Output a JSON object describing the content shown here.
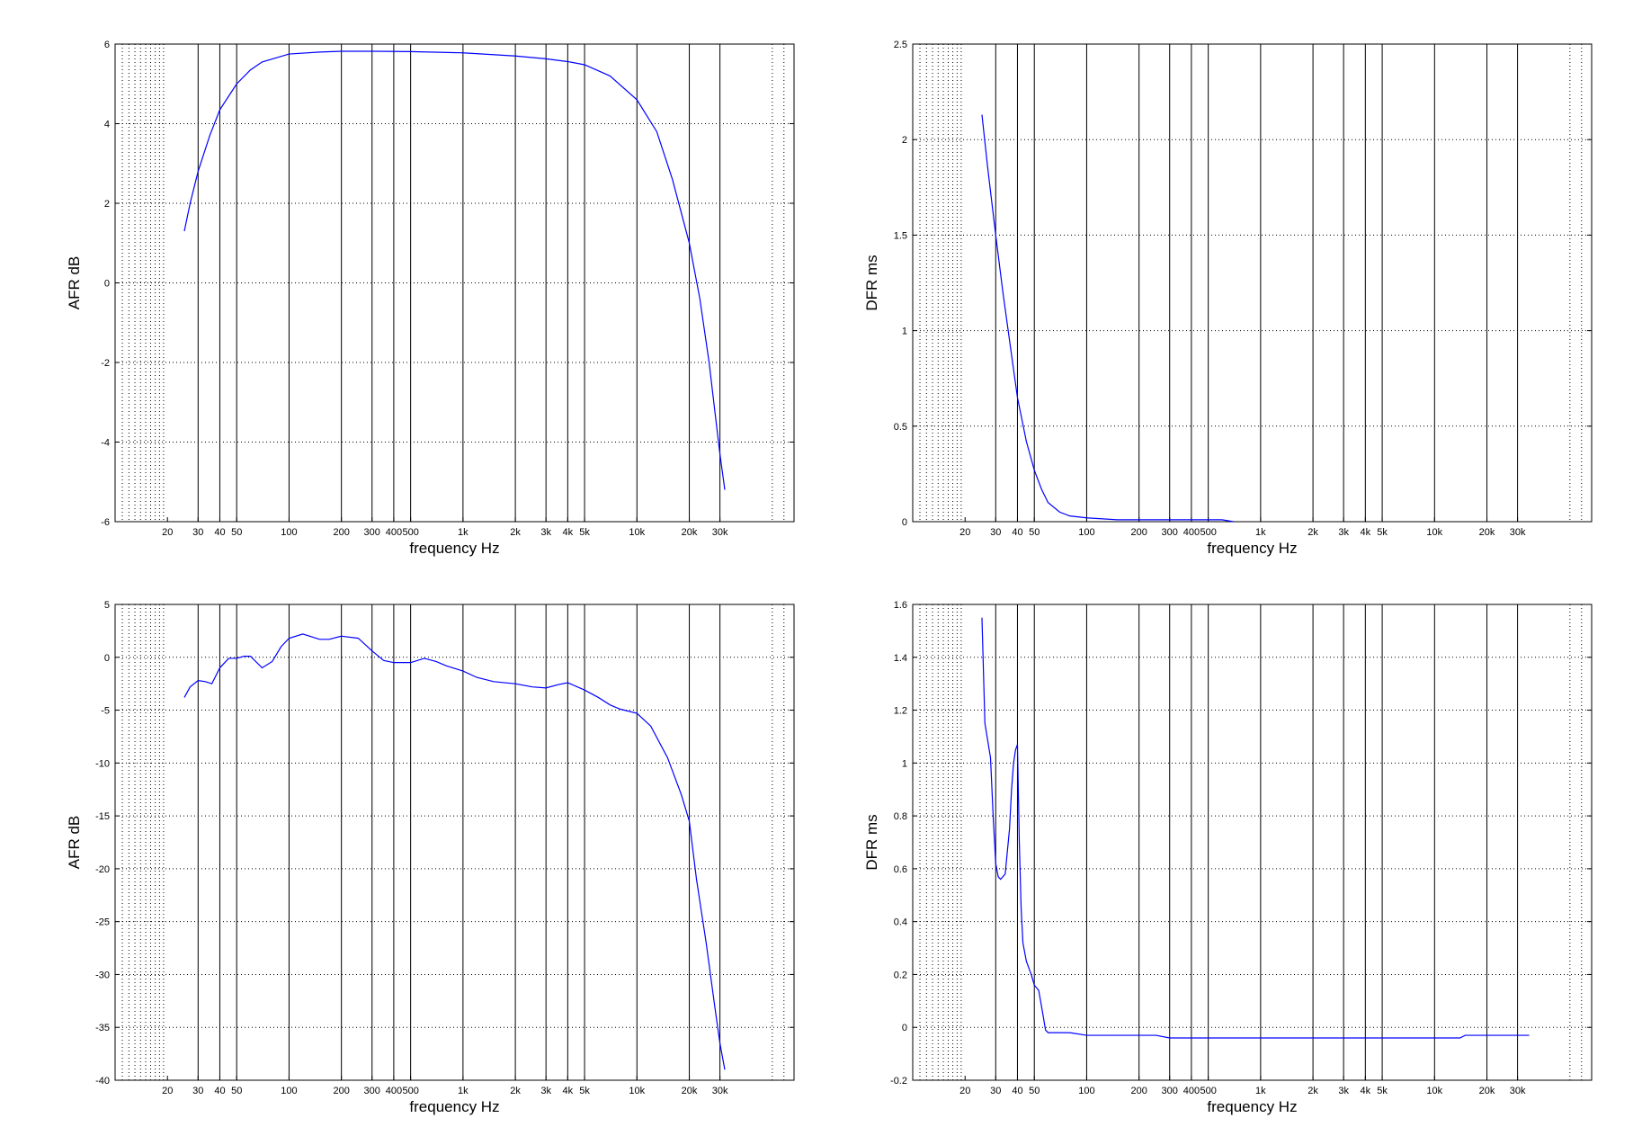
{
  "chart_data": [
    {
      "type": "line",
      "xscale": "log",
      "xlabel": "frequency   Hz",
      "ylabel": "AFR dB",
      "xlim": [
        10,
        80000
      ],
      "ylim": [
        -6,
        6
      ],
      "yticks": [
        "-6",
        "-4",
        "-2",
        "0",
        "2",
        "4",
        "6"
      ],
      "ytick_values": [
        -6,
        -4,
        -2,
        0,
        2,
        4,
        6
      ],
      "xticks": [
        "20",
        "30",
        "40",
        "50",
        "100",
        "200",
        "300",
        "400",
        "500",
        "1k",
        "2k",
        "3k",
        "4k",
        "5k",
        "10k",
        "20k",
        "30k"
      ],
      "xtick_values": [
        20,
        30,
        40,
        50,
        100,
        200,
        300,
        400,
        500,
        1000,
        2000,
        3000,
        4000,
        5000,
        10000,
        20000,
        30000
      ],
      "grid": true,
      "line_color": "#0000ff",
      "series": [
        {
          "x": [
            25,
            27,
            30,
            35,
            40,
            50,
            60,
            70,
            100,
            150,
            200,
            300,
            500,
            1000,
            2000,
            3000,
            4000,
            5000,
            7000,
            10000,
            13000,
            16000,
            20000,
            23000,
            26000,
            28000,
            30000,
            32000
          ],
          "y": [
            1.3,
            2.0,
            2.8,
            3.7,
            4.35,
            5.0,
            5.35,
            5.55,
            5.75,
            5.8,
            5.82,
            5.82,
            5.81,
            5.78,
            5.7,
            5.63,
            5.56,
            5.48,
            5.2,
            4.6,
            3.8,
            2.6,
            1.0,
            -0.4,
            -2.0,
            -3.2,
            -4.3,
            -5.2
          ]
        }
      ]
    },
    {
      "type": "line",
      "xscale": "log",
      "xlabel": "frequency   Hz",
      "ylabel": "DFR ms",
      "xlim": [
        10,
        80000
      ],
      "ylim": [
        0,
        2.5
      ],
      "yticks": [
        "0",
        "0.5",
        "1",
        "1.5",
        "2",
        "2.5"
      ],
      "ytick_values": [
        0,
        0.5,
        1,
        1.5,
        2,
        2.5
      ],
      "xticks": [
        "20",
        "30",
        "40",
        "50",
        "100",
        "200",
        "300",
        "400",
        "500",
        "1k",
        "2k",
        "3k",
        "4k",
        "5k",
        "10k",
        "20k",
        "30k"
      ],
      "xtick_values": [
        20,
        30,
        40,
        50,
        100,
        200,
        300,
        400,
        500,
        1000,
        2000,
        3000,
        4000,
        5000,
        10000,
        20000,
        30000
      ],
      "grid": true,
      "line_color": "#0000ff",
      "series": [
        {
          "x": [
            25,
            27,
            30,
            33,
            36,
            40,
            45,
            50,
            55,
            60,
            70,
            80,
            100,
            150,
            200,
            300,
            400,
            500,
            600,
            700
          ],
          "y": [
            2.13,
            1.85,
            1.5,
            1.2,
            0.95,
            0.65,
            0.42,
            0.27,
            0.17,
            0.1,
            0.05,
            0.03,
            0.02,
            0.01,
            0.01,
            0.01,
            0.01,
            0.01,
            0.01,
            0.0
          ]
        }
      ]
    },
    {
      "type": "line",
      "xscale": "log",
      "xlabel": "frequency   Hz",
      "ylabel": "AFR dB",
      "xlim": [
        10,
        80000
      ],
      "ylim": [
        -40,
        5
      ],
      "yticks": [
        "-40",
        "-35",
        "-30",
        "-25",
        "-20",
        "-15",
        "-10",
        "-5",
        "0",
        "5"
      ],
      "ytick_values": [
        -40,
        -35,
        -30,
        -25,
        -20,
        -15,
        -10,
        -5,
        0,
        5
      ],
      "xticks": [
        "20",
        "30",
        "40",
        "50",
        "100",
        "200",
        "300",
        "400",
        "500",
        "1k",
        "2k",
        "3k",
        "4k",
        "5k",
        "10k",
        "20k",
        "30k"
      ],
      "xtick_values": [
        20,
        30,
        40,
        50,
        100,
        200,
        300,
        400,
        500,
        1000,
        2000,
        3000,
        4000,
        5000,
        10000,
        20000,
        30000
      ],
      "grid": true,
      "line_color": "#0000ff",
      "series": [
        {
          "x": [
            25,
            27,
            30,
            33,
            36,
            40,
            45,
            50,
            55,
            60,
            70,
            80,
            90,
            100,
            120,
            150,
            170,
            200,
            250,
            300,
            350,
            400,
            500,
            600,
            700,
            800,
            1000,
            1200,
            1500,
            2000,
            2500,
            3000,
            3500,
            4000,
            5000,
            6000,
            7000,
            8000,
            10000,
            12000,
            15000,
            18000,
            20000,
            22000,
            25000,
            28000,
            30000,
            32000
          ],
          "y": [
            -3.8,
            -2.8,
            -2.2,
            -2.3,
            -2.5,
            -1.0,
            -0.1,
            -0.1,
            0.1,
            0.1,
            -1.0,
            -0.4,
            1.0,
            1.8,
            2.2,
            1.7,
            1.7,
            2.0,
            1.8,
            0.6,
            -0.3,
            -0.5,
            -0.5,
            -0.1,
            -0.4,
            -0.8,
            -1.3,
            -1.9,
            -2.3,
            -2.5,
            -2.8,
            -2.9,
            -2.6,
            -2.4,
            -3.1,
            -3.8,
            -4.5,
            -4.9,
            -5.3,
            -6.5,
            -9.5,
            -13.0,
            -15.5,
            -21.0,
            -27.0,
            -33.0,
            -36.5,
            -39.0
          ]
        }
      ]
    },
    {
      "type": "line",
      "xscale": "log",
      "xlabel": "frequency   Hz",
      "ylabel": "DFR ms",
      "xlim": [
        10,
        80000
      ],
      "ylim": [
        -0.2,
        1.6
      ],
      "yticks": [
        "-0.2",
        "0",
        "0.2",
        "0.4",
        "0.6",
        "0.8",
        "1",
        "1.2",
        "1.4",
        "1.6"
      ],
      "ytick_values": [
        -0.2,
        0,
        0.2,
        0.4,
        0.6,
        0.8,
        1,
        1.2,
        1.4,
        1.6
      ],
      "xticks": [
        "20",
        "30",
        "40",
        "50",
        "100",
        "200",
        "300",
        "400",
        "500",
        "1k",
        "2k",
        "3k",
        "4k",
        "5k",
        "10k",
        "20k",
        "30k"
      ],
      "xtick_values": [
        20,
        30,
        40,
        50,
        100,
        200,
        300,
        400,
        500,
        1000,
        2000,
        3000,
        4000,
        5000,
        10000,
        20000,
        30000
      ],
      "grid": true,
      "line_color": "#0000ff",
      "series": [
        {
          "x": [
            25,
            26,
            28,
            29,
            30,
            31,
            32,
            34,
            36,
            37,
            38,
            39,
            40,
            41,
            42,
            43,
            45,
            48,
            50,
            53,
            56,
            58,
            60,
            65,
            70,
            80,
            100,
            150,
            200,
            250,
            300,
            400,
            500,
            1000,
            2000,
            5000,
            10000,
            14000,
            15000,
            20000,
            30000,
            35000
          ],
          "y": [
            1.55,
            1.15,
            1.02,
            0.8,
            0.62,
            0.57,
            0.56,
            0.58,
            0.75,
            0.9,
            1.0,
            1.05,
            1.07,
            0.7,
            0.45,
            0.32,
            0.25,
            0.2,
            0.16,
            0.14,
            0.05,
            -0.01,
            -0.02,
            -0.02,
            -0.02,
            -0.02,
            -0.03,
            -0.03,
            -0.03,
            -0.03,
            -0.04,
            -0.04,
            -0.04,
            -0.04,
            -0.04,
            -0.04,
            -0.04,
            -0.04,
            -0.03,
            -0.03,
            -0.03,
            -0.03
          ]
        }
      ]
    }
  ]
}
